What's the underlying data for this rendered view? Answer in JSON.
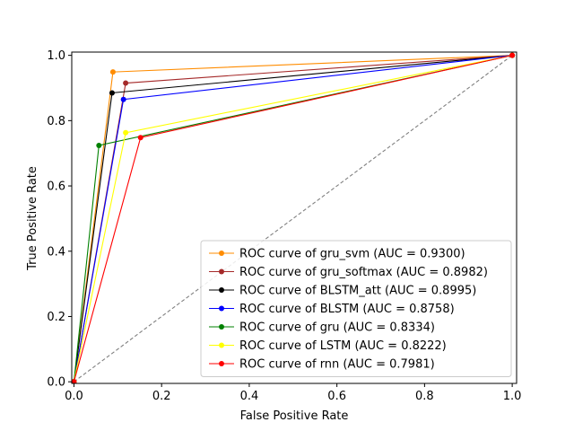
{
  "chart_data": {
    "type": "line",
    "title": "",
    "xlabel": "False Positive Rate",
    "ylabel": "True Positive Rate",
    "xlim": [
      -0.005,
      1.01
    ],
    "ylim": [
      -0.005,
      1.01
    ],
    "xticks": [
      "0.0",
      "0.2",
      "0.4",
      "0.6",
      "0.8",
      "1.0"
    ],
    "yticks": [
      "0.0",
      "0.2",
      "0.4",
      "0.6",
      "0.8",
      "1.0"
    ],
    "grid": false,
    "legend_position": "lower-right",
    "reference_line": {
      "x": [
        0,
        1
      ],
      "y": [
        0,
        1
      ],
      "color": "#808080",
      "style": "dashed"
    },
    "series": [
      {
        "name": "ROC curve of gru_svm (AUC = 0.9300)",
        "color": "#ff8c00",
        "x": [
          0,
          0.089,
          1
        ],
        "y": [
          0,
          0.949,
          1
        ]
      },
      {
        "name": "ROC curve of gru_softmax (AUC = 0.8982)",
        "color": "#a52a2a",
        "x": [
          0,
          0.118,
          1
        ],
        "y": [
          0,
          0.915,
          1
        ]
      },
      {
        "name": "ROC curve of BLSTM_att (AUC = 0.8995)",
        "color": "#000000",
        "x": [
          0,
          0.087,
          1
        ],
        "y": [
          0,
          0.885,
          1
        ]
      },
      {
        "name": "ROC curve of BLSTM (AUC = 0.8758)",
        "color": "#0000ff",
        "x": [
          0,
          0.113,
          1
        ],
        "y": [
          0,
          0.865,
          1
        ]
      },
      {
        "name": "ROC curve of gru (AUC = 0.8334)",
        "color": "#008000",
        "x": [
          0,
          0.057,
          1
        ],
        "y": [
          0,
          0.724,
          1
        ]
      },
      {
        "name": "ROC curve of LSTM (AUC = 0.8222)",
        "color": "#ffff00",
        "x": [
          0,
          0.118,
          1
        ],
        "y": [
          0,
          0.763,
          1
        ]
      },
      {
        "name": "ROC curve of rnn (AUC = 0.7981)",
        "color": "#ff0000",
        "x": [
          0,
          0.152,
          1
        ],
        "y": [
          0,
          0.748,
          1
        ]
      }
    ]
  }
}
